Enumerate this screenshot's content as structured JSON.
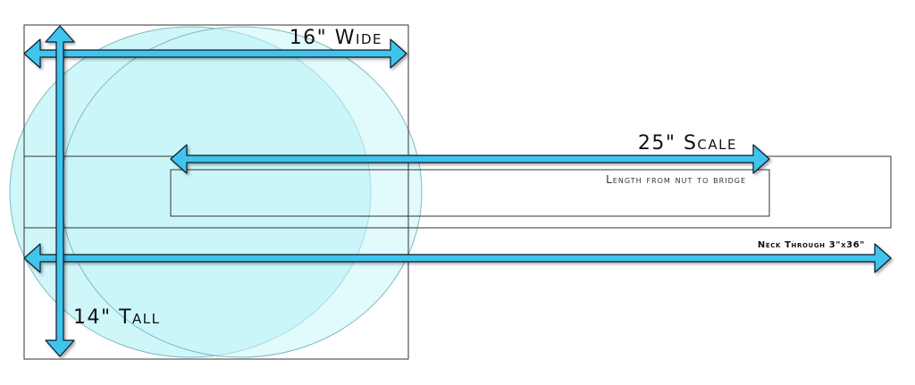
{
  "labels": {
    "wide": "16\" Wide",
    "scale": "25\" Scale",
    "nut_to_bridge": "Length from nut to bridge",
    "neck_through": "Neck Through 3\"x36\"",
    "tall": "14\" Tall"
  },
  "colors": {
    "arrow_fill": "#3fc4ee",
    "arrow_stroke": "#0d1b2a",
    "circle_fill": "#bff3f7",
    "outline": "#333333"
  }
}
